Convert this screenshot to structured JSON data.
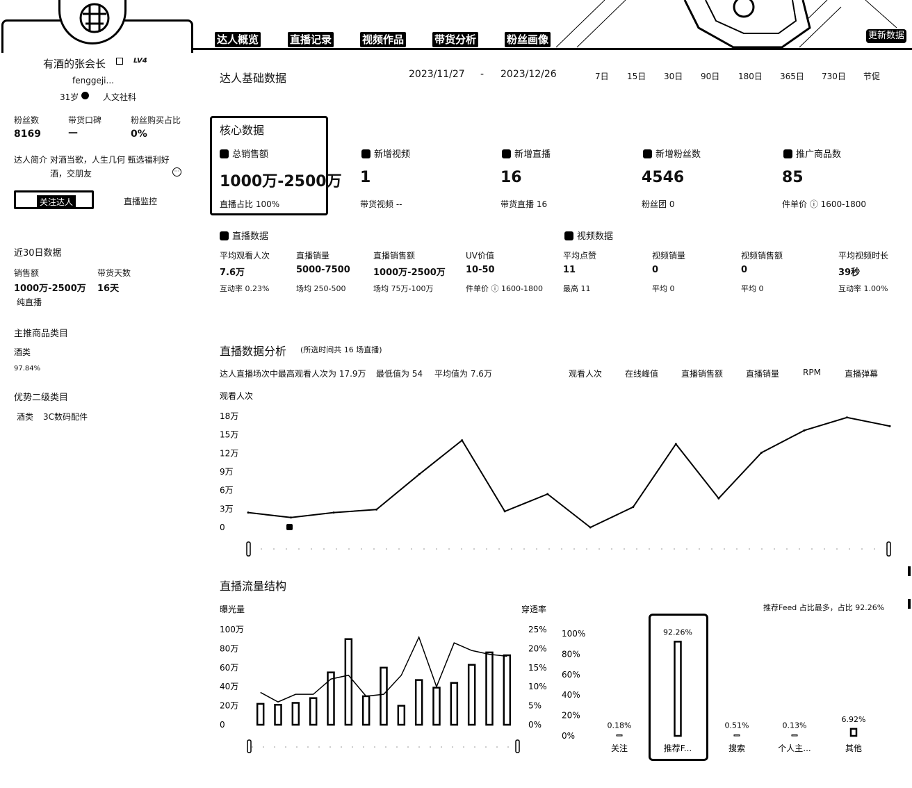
{
  "tabs": [
    "达人概览",
    "直播记录",
    "视频作品",
    "带货分析",
    "粉丝画像"
  ],
  "refresh_label": "更新数据",
  "profile": {
    "name": "有酒的张会长",
    "level": "LV4",
    "handle": "fenggeji...",
    "age": "31岁",
    "category": "人文社科",
    "stats": [
      {
        "label": "粉丝数",
        "value": "8169"
      },
      {
        "label": "带货口碑",
        "value": "—"
      },
      {
        "label": "粉丝购买占比",
        "value": "0%"
      }
    ],
    "bio_label": "达人简介",
    "bio_line1": "对酒当歌，人生几何 甄选福利好",
    "bio_line2": "酒，交朋友",
    "follow_label": "关注达人",
    "monitor_label": "直播监控",
    "recent_title": "近30日数据",
    "sales_label": "销售额",
    "sales_value": "1000万-2500万",
    "days_label": "带货天数",
    "days_value": "16天",
    "sales_note": "纯直播",
    "main_cat_title": "主推商品类目",
    "main_cat": "酒类",
    "main_cat_pct": "97.84%",
    "sub_cat_title": "优势二级类目",
    "sub_cats": [
      "酒类",
      "3C数码配件"
    ]
  },
  "basic": {
    "title": "达人基础数据",
    "date_start": "2023/11/27",
    "date_sep": "-",
    "date_end": "2023/12/26",
    "ranges": [
      "7日",
      "15日",
      "30日",
      "90日",
      "180日",
      "365日",
      "730日",
      "节促"
    ]
  },
  "core": {
    "title": "核心数据",
    "metrics": [
      {
        "label": "总销售额",
        "value": "1000万-2500万",
        "sub": "直播占比 100%"
      },
      {
        "label": "新增视频",
        "value": "1",
        "sub": "带货视频 --"
      },
      {
        "label": "新增直播",
        "value": "16",
        "sub": "带货直播 16"
      },
      {
        "label": "新增粉丝数",
        "value": "4546",
        "sub": "粉丝团 0"
      },
      {
        "label": "推广商品数",
        "value": "85",
        "sub": "件单价 ⓘ 1600-1800"
      }
    ]
  },
  "live": {
    "title": "直播数据",
    "items": [
      {
        "label": "平均观看人次",
        "value": "7.6万",
        "sub": "互动率 0.23%"
      },
      {
        "label": "直播销量",
        "value": "5000-7500",
        "sub": "场均 250-500"
      },
      {
        "label": "直播销售额",
        "value": "1000万-2500万",
        "sub": "场均 75万-100万"
      },
      {
        "label": "UV价值",
        "value": "10-50",
        "sub": "件单价 ⓘ 1600-1800"
      }
    ]
  },
  "video": {
    "title": "视频数据",
    "items": [
      {
        "label": "平均点赞",
        "value": "11",
        "sub": "最高 11"
      },
      {
        "label": "视频销量",
        "value": "0",
        "sub": "平均 0"
      },
      {
        "label": "视频销售额",
        "value": "0",
        "sub": "平均 0"
      },
      {
        "label": "平均视频时长",
        "value": "39秒",
        "sub": "互动率 1.00%"
      }
    ]
  },
  "analysis": {
    "title": "直播数据分析",
    "subtitle": "(所选时间共 16 场直播)",
    "summary1": "达人直播场次中最高观看人次为 17.9万",
    "summary2": "最低值为 54",
    "summary3": "平均值为 7.6万",
    "metric_tabs": [
      "观看人次",
      "在线峰值",
      "直播销售额",
      "直播销量",
      "RPM",
      "直播弹幕"
    ]
  },
  "traffic": {
    "title": "直播流量结构",
    "top_note": "推荐Feed 占比最多，占比 92.26%"
  },
  "chart_data": [
    {
      "type": "line",
      "ylabel": "观看人次",
      "yticks": [
        "18万",
        "15万",
        "12万",
        "9万",
        "6万",
        "3万",
        "0"
      ],
      "ylim": [
        0,
        180000
      ],
      "grid": false,
      "values": [
        24000,
        16000,
        24000,
        29000,
        86000,
        141000,
        26000,
        54000,
        0,
        33000,
        135000,
        47000,
        121000,
        157000,
        178000,
        164000
      ]
    },
    {
      "type": "bar",
      "ylabel": "曝光量",
      "y2label": "穿透率",
      "yticks": [
        "100万",
        "80万",
        "60万",
        "40万",
        "20万",
        "0"
      ],
      "y2ticks": [
        "25%",
        "20%",
        "15%",
        "10%",
        "5%",
        "0%"
      ],
      "ylim": [
        0,
        1000000
      ],
      "y2lim": [
        0,
        25
      ],
      "bars": [
        220000,
        210000,
        230000,
        280000,
        550000,
        900000,
        300000,
        600000,
        200000,
        470000,
        390000,
        440000,
        630000,
        760000,
        730000
      ],
      "line": [
        8.5,
        6,
        8,
        8,
        12,
        13,
        7.5,
        8,
        13,
        23,
        10,
        21.5,
        19.5,
        18.5,
        18
      ]
    },
    {
      "type": "bar",
      "yticks": [
        "100%",
        "80%",
        "60%",
        "40%",
        "20%",
        "0%"
      ],
      "ylim": [
        0,
        100
      ],
      "categories": [
        "关注",
        "推荐F...",
        "搜索",
        "个人主...",
        "其他"
      ],
      "values": [
        0.18,
        92.26,
        0.51,
        0.13,
        6.92
      ],
      "value_labels": [
        "0.18%",
        "92.26%",
        "0.51%",
        "0.13%",
        "6.92%"
      ]
    }
  ]
}
